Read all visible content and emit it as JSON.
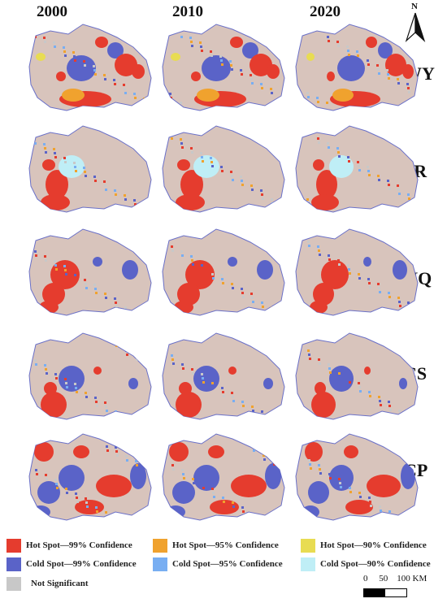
{
  "years": [
    "2000",
    "2010",
    "2020"
  ],
  "north_label": "N",
  "rows": [
    "WY",
    "SR",
    "HQ",
    "CS",
    "CP"
  ],
  "legend": [
    {
      "label": "Hot Spot—99% Confidence",
      "color": "#e53c2e"
    },
    {
      "label": "Hot Spot—95% Confidence",
      "color": "#f0a22e"
    },
    {
      "label": "Hot Spot—90% Confidence",
      "color": "#e8dc52"
    },
    {
      "label": "Cold Spot—99% Confidence",
      "color": "#5a63c8"
    },
    {
      "label": "Cold Spot—95% Confidence",
      "color": "#78aef2"
    },
    {
      "label": "Cold Spot—90% Confidence",
      "color": "#bfeef6"
    },
    {
      "label": "Not Significant",
      "color": "#c8c8c8"
    }
  ],
  "scale_bar": {
    "ticks": "0     50    100 KM"
  },
  "colors": {
    "background": "#d8c4bc",
    "outline": "#6a70c8"
  }
}
